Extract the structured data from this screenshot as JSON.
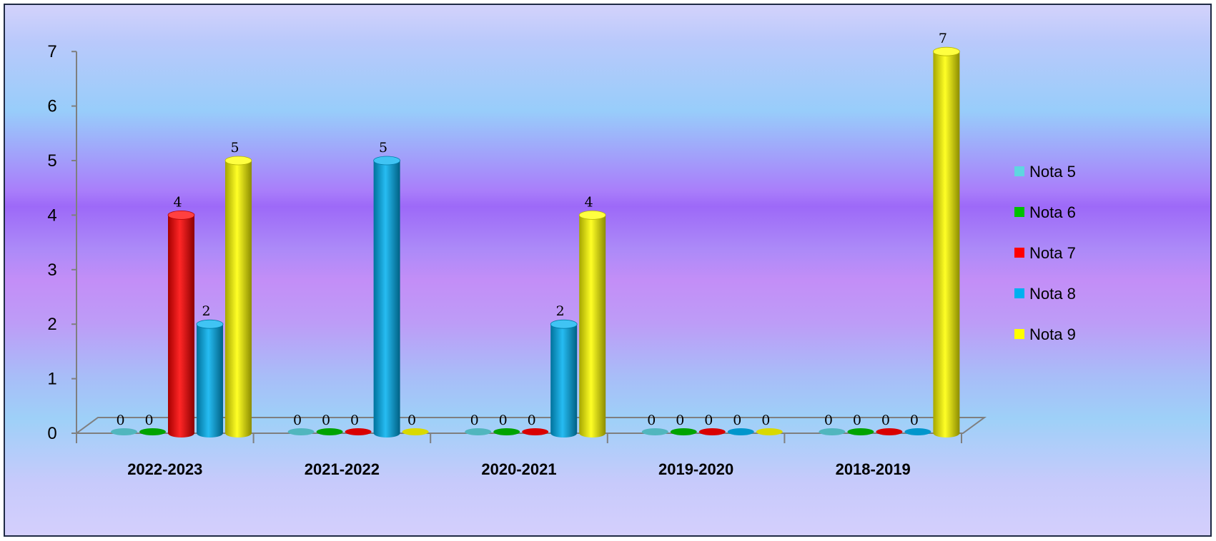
{
  "chart_data": {
    "type": "bar",
    "categories": [
      "2022-2023",
      "2021-2022",
      "2020-2021",
      "2019-2020",
      "2018-2019"
    ],
    "series": [
      {
        "name": "Nota 5",
        "color": "#5fd6e0",
        "values": [
          0,
          0,
          0,
          0,
          0
        ]
      },
      {
        "name": "Nota 6",
        "color": "#00c000",
        "values": [
          0,
          0,
          0,
          0,
          0
        ]
      },
      {
        "name": "Nota 7",
        "color": "#ff0000",
        "values": [
          4,
          0,
          0,
          0,
          0
        ]
      },
      {
        "name": "Nota 8",
        "color": "#00b0f0",
        "values": [
          2,
          5,
          2,
          0,
          0
        ]
      },
      {
        "name": "Nota 9",
        "color": "#ffff00",
        "values": [
          5,
          0,
          4,
          0,
          7
        ]
      }
    ],
    "ylim": [
      0,
      7
    ],
    "yticks": [
      "0",
      "1",
      "2",
      "3",
      "4",
      "5",
      "6",
      "7"
    ],
    "legend_position": "right",
    "grid": false,
    "style": "3d-cylinder"
  }
}
